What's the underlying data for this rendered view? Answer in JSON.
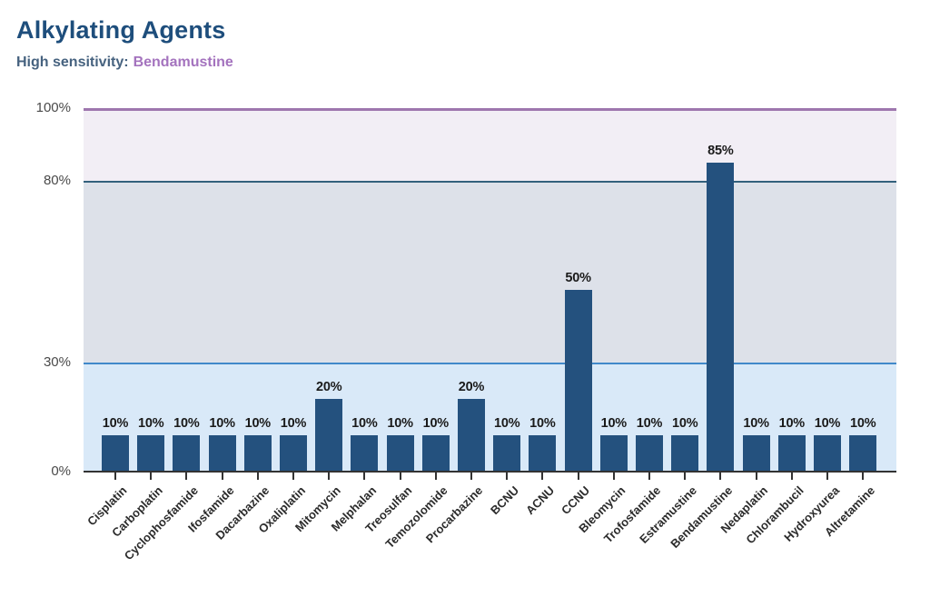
{
  "header": {
    "title": "Alkylating Agents",
    "subtitle_label": "High sensitivity:",
    "subtitle_value": "Bendamustine"
  },
  "colors": {
    "title_color": "#1e4e7c",
    "subtitle_label_color": "#46627f",
    "subtitle_value_color": "#a473be",
    "bar_color": "#24517e",
    "axis_color": "#333333",
    "tick_label_color": "#4a4a4a",
    "value_label_color": "#1a1a1a",
    "x_label_color": "#2b2b2b",
    "band_low": "#d9e9f8",
    "band_mid": "#dde1e9",
    "band_high": "#f2eef5",
    "line_30": "#4189ca",
    "line_80": "#33617c",
    "line_100": "#9e76ae"
  },
  "chart_data": {
    "type": "bar",
    "title": "Alkylating Agents",
    "subtitle": "High sensitivity: Bendamustine",
    "xlabel": "",
    "ylabel": "",
    "ylim": [
      0,
      100
    ],
    "legend": "none",
    "grid": "horizontal threshold lines at 30%, 80%, 100%",
    "categories": [
      "Cisplatin",
      "Carboplatin",
      "Cyclophosfamide",
      "Ifosfamide",
      "Dacarbazine",
      "Oxaliplatin",
      "Mitomycin",
      "Melphalan",
      "Treosulfan",
      "Temozolomide",
      "Procarbazine",
      "BCNU",
      "ACNU",
      "CCNU",
      "Bleomycin",
      "Trofosfamide",
      "Estramustine",
      "Bendamustine",
      "Nedaplatin",
      "Chlorambucil",
      "Hydroxyurea",
      "Altretamine"
    ],
    "values": [
      10,
      10,
      10,
      10,
      10,
      10,
      20,
      10,
      10,
      10,
      20,
      10,
      10,
      50,
      10,
      10,
      10,
      85,
      10,
      10,
      10,
      10
    ],
    "value_labels": [
      "10%",
      "10%",
      "10%",
      "10%",
      "10%",
      "10%",
      "20%",
      "10%",
      "10%",
      "10%",
      "20%",
      "10%",
      "10%",
      "50%",
      "10%",
      "10%",
      "10%",
      "85%",
      "10%",
      "10%",
      "10%",
      "10%"
    ],
    "y_ticks": [
      {
        "value": 0,
        "label": "0%"
      },
      {
        "value": 30,
        "label": "30%"
      },
      {
        "value": 80,
        "label": "80%"
      },
      {
        "value": 100,
        "label": "100%"
      }
    ],
    "bands": [
      {
        "from": 0,
        "to": 30,
        "fill": "#d9e9f8",
        "line": "#4189ca"
      },
      {
        "from": 30,
        "to": 80,
        "fill": "#dde1e9",
        "line": "#33617c"
      },
      {
        "from": 80,
        "to": 100,
        "fill": "#f2eef5",
        "line": "#9e76ae"
      }
    ]
  }
}
